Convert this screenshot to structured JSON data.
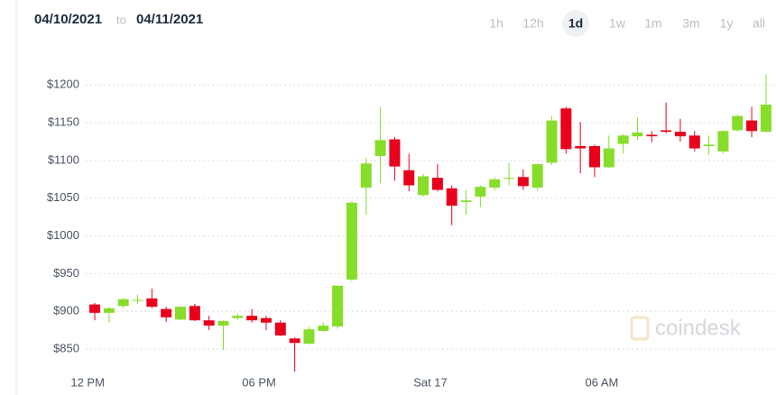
{
  "header": {
    "from": "04/10/2021",
    "separator": "to",
    "to": "04/11/2021",
    "ranges": [
      {
        "label": "1h",
        "active": false
      },
      {
        "label": "12h",
        "active": false
      },
      {
        "label": "1d",
        "active": true
      },
      {
        "label": "1w",
        "active": false
      },
      {
        "label": "1m",
        "active": false
      },
      {
        "label": "3m",
        "active": false
      },
      {
        "label": "1y",
        "active": false
      },
      {
        "label": "all",
        "active": false
      }
    ]
  },
  "chart_data": {
    "type": "candlestick",
    "watermark": "coindesk",
    "up_color": "#86dd2a",
    "down_color": "#e8001c",
    "x": [
      0.25,
      0.75,
      1.25,
      1.75,
      2.25,
      2.75,
      3.25,
      3.75,
      4.25,
      4.75,
      5.25,
      5.75,
      6.25,
      6.75,
      7.25,
      7.75,
      8.25,
      8.75,
      9.25,
      9.75,
      10.25,
      10.75,
      11.25,
      11.75,
      12.25,
      12.75,
      13.25,
      13.75,
      14.25,
      14.75,
      15.25,
      15.75,
      16.25,
      16.75,
      17.25,
      17.75,
      18.25,
      18.75,
      19.25,
      19.75,
      20.25,
      20.75,
      21.25,
      21.75,
      22.25,
      22.75,
      23.25,
      23.75
    ],
    "open": [
      909,
      898,
      907,
      914,
      917,
      903,
      889,
      907,
      888,
      881,
      891,
      894,
      891,
      885,
      864,
      857,
      874,
      880,
      942,
      1064,
      1106,
      1128,
      1087,
      1054,
      1077,
      1063,
      1045,
      1052,
      1064,
      1076,
      1078,
      1064,
      1097,
      1169,
      1119,
      1119,
      1091,
      1122,
      1132,
      1134,
      1140,
      1138,
      1133,
      1119,
      1112,
      1140,
      1153,
      1138
    ],
    "high": [
      911,
      906,
      918,
      922,
      930,
      906,
      907,
      910,
      894,
      888,
      897,
      903,
      894,
      888,
      865,
      879,
      885,
      934,
      1046,
      1103,
      1171,
      1131,
      1109,
      1082,
      1095,
      1067,
      1061,
      1067,
      1078,
      1097,
      1088,
      1095,
      1159,
      1171,
      1151,
      1121,
      1133,
      1135,
      1157,
      1139,
      1177,
      1155,
      1139,
      1133,
      1140,
      1161,
      1171,
      1214
    ],
    "low": [
      888,
      885,
      904,
      910,
      904,
      886,
      888,
      887,
      875,
      849,
      888,
      885,
      875,
      867,
      820,
      856,
      873,
      877,
      940,
      1028,
      1070,
      1073,
      1059,
      1052,
      1059,
      1014,
      1028,
      1038,
      1060,
      1067,
      1061,
      1060,
      1094,
      1109,
      1083,
      1078,
      1090,
      1109,
      1127,
      1124,
      1136,
      1125,
      1112,
      1107,
      1109,
      1138,
      1131,
      1137
    ],
    "close": [
      898,
      904,
      916,
      915,
      906,
      892,
      906,
      888,
      881,
      887,
      894,
      888,
      885,
      868,
      858,
      876,
      881,
      934,
      1044,
      1096,
      1127,
      1092,
      1067,
      1079,
      1061,
      1040,
      1047,
      1065,
      1075,
      1077,
      1066,
      1095,
      1153,
      1115,
      1116,
      1091,
      1116,
      1133,
      1137,
      1132,
      1138,
      1132,
      1116,
      1121,
      1139,
      1159,
      1139,
      1174
    ],
    "xlim": [
      -2.5,
      24.1
    ],
    "xticks": [
      {
        "value": 0,
        "label": "12 PM"
      },
      {
        "value": 6,
        "label": "06 PM"
      },
      {
        "value": 12,
        "label": "Sat 17"
      },
      {
        "value": 18,
        "label": "06 AM"
      }
    ],
    "ylim": [
      789,
      1241
    ],
    "yticks": [
      {
        "value": 850,
        "label": "$850"
      },
      {
        "value": 900,
        "label": "$900"
      },
      {
        "value": 950,
        "label": "$950"
      },
      {
        "value": 1000,
        "label": "$1000"
      },
      {
        "value": 1050,
        "label": "$1050"
      },
      {
        "value": 1100,
        "label": "$1100"
      },
      {
        "value": 1150,
        "label": "$1150"
      },
      {
        "value": 1200,
        "label": "$1200"
      }
    ],
    "grid": true
  }
}
